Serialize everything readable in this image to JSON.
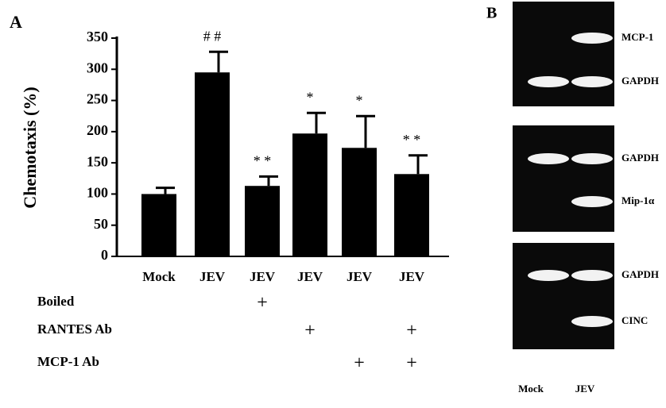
{
  "chart_data": {
    "type": "bar",
    "panel": "A",
    "ylabel": "Chemotaxis (%)",
    "categories": [
      "Mock",
      "JEV",
      "JEV",
      "JEV",
      "JEV",
      "JEV"
    ],
    "values": [
      100,
      295,
      113,
      197,
      174,
      132
    ],
    "errors": [
      10,
      33,
      15,
      33,
      51,
      30
    ],
    "annotations": [
      null,
      "# #",
      "* *",
      "*",
      "*",
      "* *"
    ],
    "color": "#000000",
    "ylim": [
      0,
      350
    ],
    "yticks": [
      0,
      50,
      100,
      150,
      200,
      250,
      300,
      350
    ],
    "grid": false
  },
  "treatments": [
    {
      "label": "Boiled",
      "marks": [
        null,
        null,
        "+",
        null,
        null,
        null
      ]
    },
    {
      "label": "RANTES Ab",
      "marks": [
        null,
        null,
        null,
        "+",
        null,
        "+"
      ]
    },
    {
      "label": "MCP-1  Ab",
      "marks": [
        null,
        null,
        null,
        null,
        "+",
        "+"
      ]
    }
  ],
  "gel": {
    "panel": "B",
    "lanes": [
      "Mock",
      "JEV"
    ],
    "blocks": [
      {
        "bands": [
          "MCP-1",
          "GAPDH"
        ]
      },
      {
        "bands": [
          "GAPDH",
          "Mip-1α"
        ]
      },
      {
        "bands": [
          "GAPDH",
          "CINC"
        ]
      }
    ]
  }
}
